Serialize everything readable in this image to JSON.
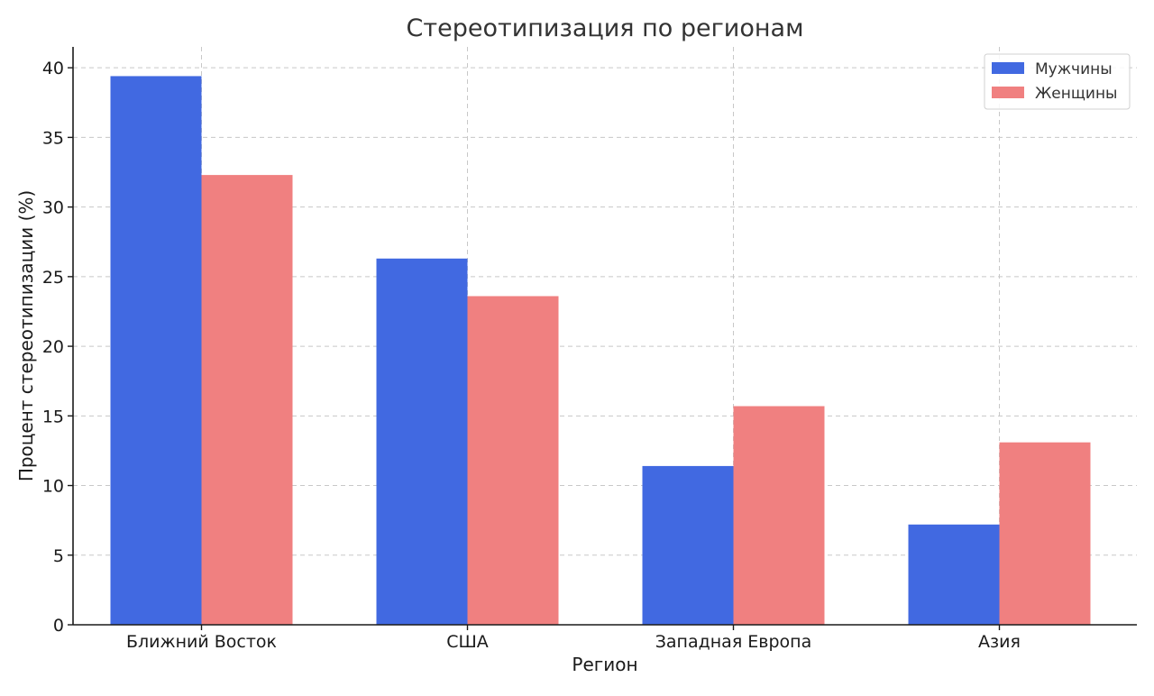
{
  "chart_data": {
    "type": "bar",
    "title": "Стереотипизация по регионам",
    "xlabel": "Регион",
    "ylabel": "Процент стереотипизации (%)",
    "categories": [
      "Ближний Восток",
      "США",
      "Западная Европа",
      "Азия"
    ],
    "series": [
      {
        "name": "Мужчины",
        "color": "#4169e1",
        "values": [
          39.4,
          26.3,
          11.4,
          7.2
        ]
      },
      {
        "name": "Женщины",
        "color": "#f08080",
        "values": [
          32.3,
          23.6,
          15.7,
          13.1
        ]
      }
    ],
    "ylim": [
      0,
      41.5
    ],
    "yticks": [
      0,
      5,
      10,
      15,
      20,
      25,
      30,
      35,
      40
    ],
    "grid": true,
    "legend_position": "top-right"
  }
}
